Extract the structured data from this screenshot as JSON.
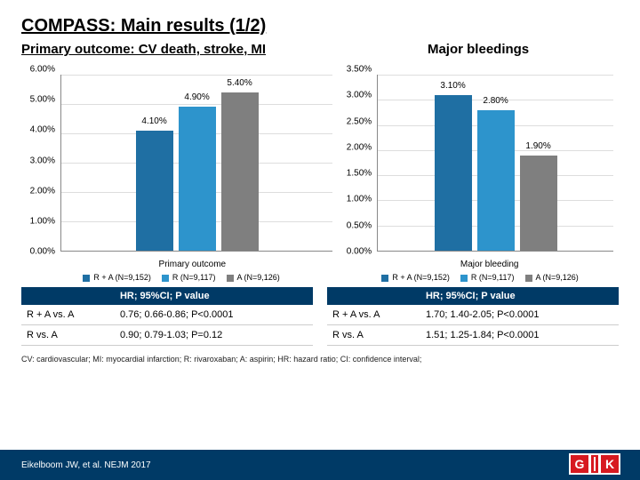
{
  "title": "COMPASS: Main results (1/2)",
  "sub_left": "Primary outcome: CV death, stroke, MI",
  "sub_right": "Major bleedings",
  "colors": {
    "s1": "#1f6fa3",
    "s2": "#2d94cc",
    "s3": "#7f7f7f",
    "header": "#003a66",
    "logo": "#d71920"
  },
  "chart_left": {
    "ymax": 6.0,
    "ystep": 1.0,
    "yfmt_suffix": "%",
    "x_title": "Primary outcome",
    "bars": [
      {
        "label": "4.10%",
        "value": 4.1,
        "colorKey": "s1"
      },
      {
        "label": "4.90%",
        "value": 4.9,
        "colorKey": "s2"
      },
      {
        "label": "5.40%",
        "value": 5.4,
        "colorKey": "s3"
      }
    ]
  },
  "chart_right": {
    "ymax": 3.5,
    "ystep": 0.5,
    "yfmt_suffix": "%",
    "x_title": "Major bleeding",
    "bars": [
      {
        "label": "3.10%",
        "value": 3.1,
        "colorKey": "s1"
      },
      {
        "label": "2.80%",
        "value": 2.8,
        "colorKey": "s2"
      },
      {
        "label": "1.90%",
        "value": 1.9,
        "colorKey": "s3"
      }
    ]
  },
  "legend": [
    {
      "label": "R + A (N=9,152)",
      "colorKey": "s1"
    },
    {
      "label": "R (N=9,117)",
      "colorKey": "s2"
    },
    {
      "label": "A (N=9,126)",
      "colorKey": "s3"
    }
  ],
  "table_left": {
    "head_blank": "",
    "head": "HR; 95%CI; P value",
    "rows": [
      {
        "c1": "R + A vs. A",
        "c2": "0.76; 0.66-0.86; P<0.0001"
      },
      {
        "c1": "R vs. A",
        "c2": "0.90; 0.79-1.03; P=0.12"
      }
    ]
  },
  "table_right": {
    "head_blank": "",
    "head": "HR; 95%CI; P value",
    "rows": [
      {
        "c1": "R + A vs. A",
        "c2": "1.70; 1.40-2.05; P<0.0001"
      },
      {
        "c1": "R vs. A",
        "c2": "1.51; 1.25-1.84; P<0.0001"
      }
    ]
  },
  "abbr": "CV: cardiovascular; MI: myocardial infarction; R: rivaroxaban; A: aspirin; HR: hazard ratio; CI: confidence interval;",
  "ref": "Eikelboom JW, et al. NEJM 2017"
}
